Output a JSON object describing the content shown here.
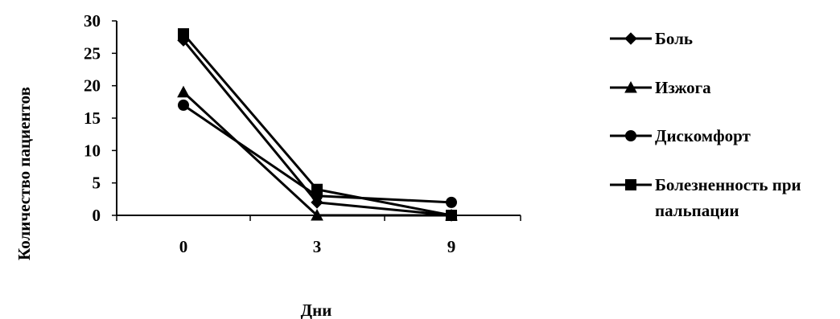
{
  "chart_data": {
    "type": "line",
    "x": [
      "0",
      "3",
      "9"
    ],
    "ylim": [
      0,
      30
    ],
    "yticks": [
      0,
      5,
      10,
      15,
      20,
      25,
      30
    ],
    "xlabel": "Дни",
    "ylabel": "Количество пациентов",
    "grid": false,
    "legend_position": "right",
    "series": [
      {
        "name": "Боль",
        "marker": "diamond",
        "values": [
          27,
          2,
          0
        ]
      },
      {
        "name": "Изжога",
        "marker": "triangle",
        "values": [
          19,
          0,
          0
        ]
      },
      {
        "name": "Дискомфорт",
        "marker": "circle",
        "values": [
          17,
          3,
          2
        ]
      },
      {
        "name": "Болезненность при пальпации",
        "name_lines": [
          "Болезненность при",
          "пальпации"
        ],
        "marker": "square",
        "values": [
          28,
          4,
          0
        ]
      }
    ],
    "colors": {
      "line": "#000000",
      "background": "#ffffff"
    }
  }
}
